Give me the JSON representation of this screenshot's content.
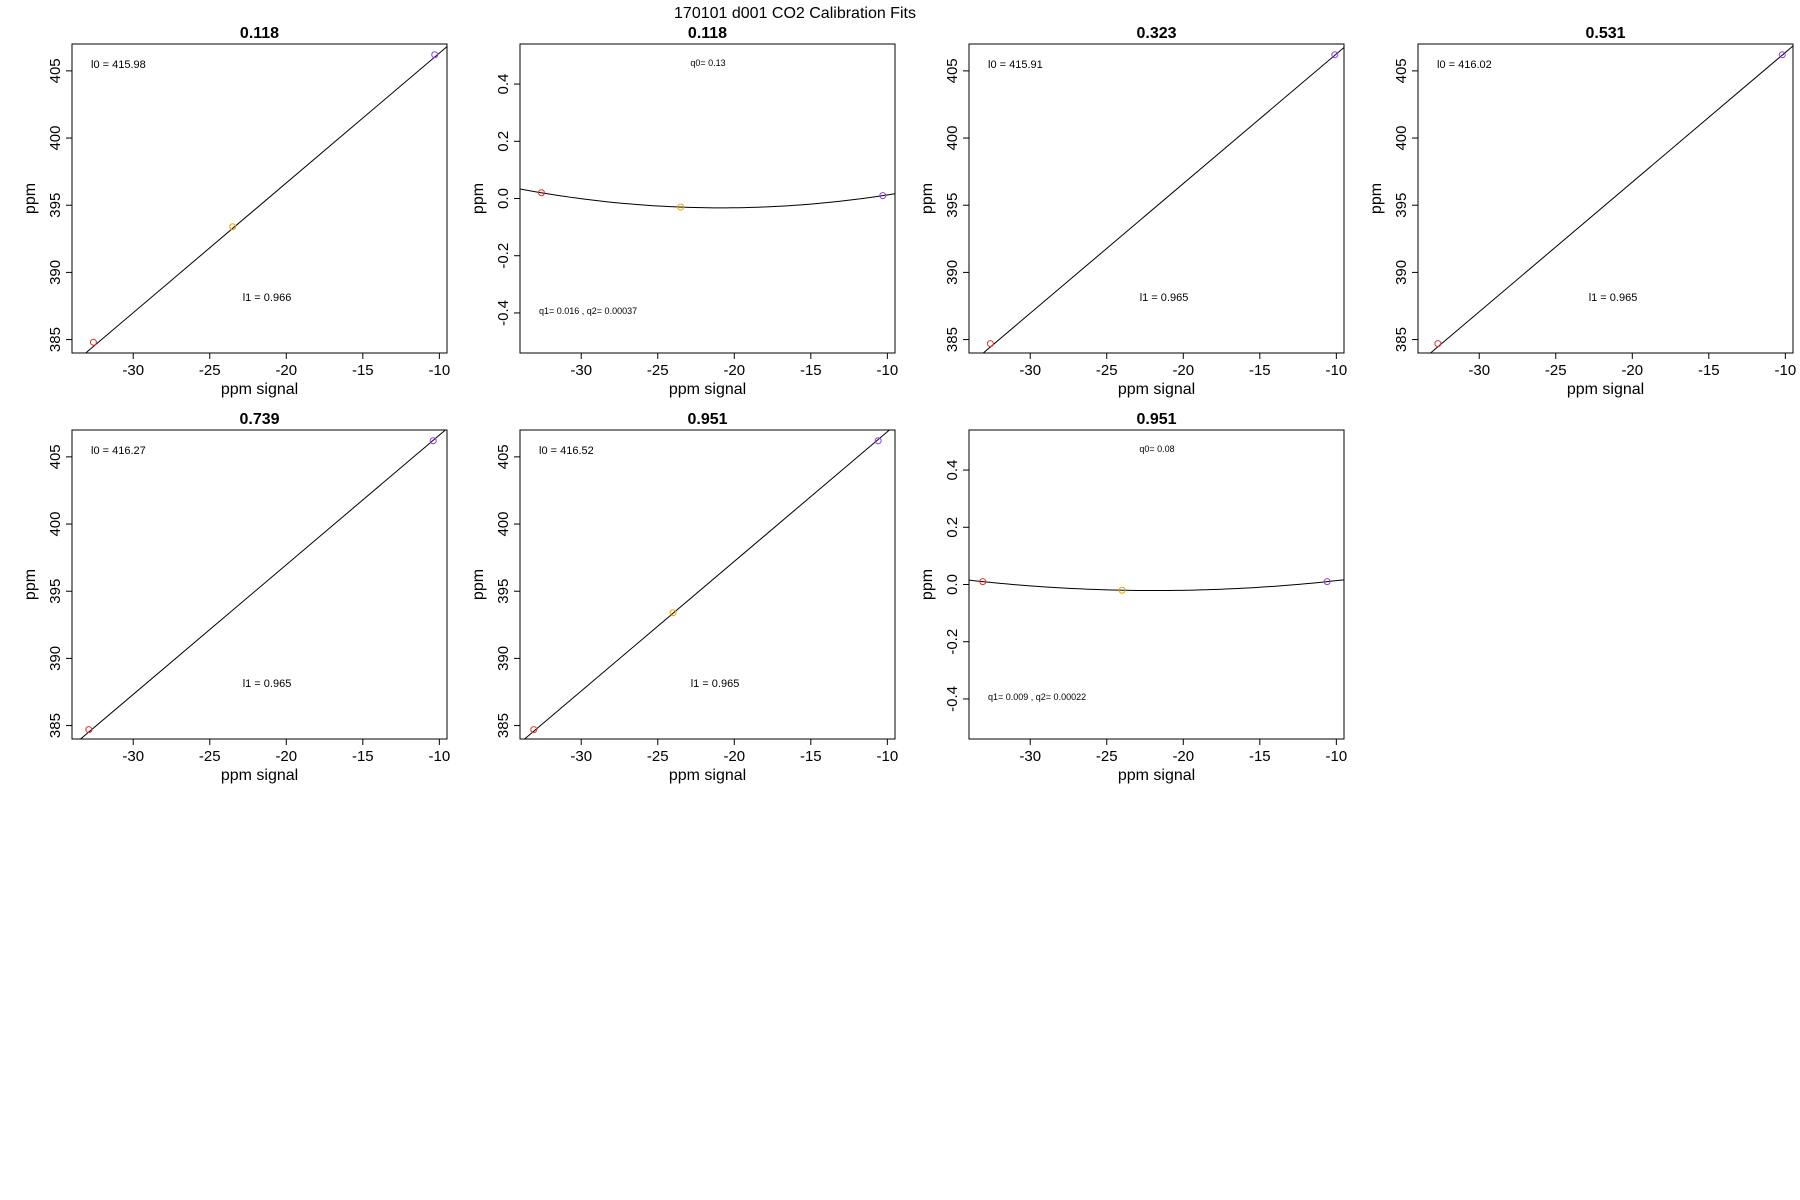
{
  "figure": {
    "title": "170101    d001    CO2 Calibration Fits"
  },
  "chart_data": [
    {
      "type": "scatter",
      "panel": "linear",
      "title": "0.118",
      "xlabel": "ppm signal",
      "ylabel": "ppm",
      "xlim": [
        -34,
        -9.5
      ],
      "ylim": [
        384,
        407
      ],
      "xticks": [
        -30,
        -25,
        -20,
        -15,
        -10
      ],
      "yticks": [
        385,
        390,
        395,
        400,
        405
      ],
      "points": [
        {
          "x": -32.6,
          "y": 384.8,
          "color": "#e03030"
        },
        {
          "x": -23.5,
          "y": 393.4,
          "color": "#f0a000"
        },
        {
          "x": -10.3,
          "y": 406.2,
          "color": "#9040e0"
        }
      ],
      "fit": {
        "intercept": 415.98,
        "slope": 0.966
      },
      "annotations": {
        "top": "l0 =  415.98",
        "bottom": "l1 =  0.966"
      }
    },
    {
      "type": "scatter",
      "panel": "residual",
      "title": "0.118",
      "xlabel": "ppm signal",
      "ylabel": "ppm",
      "xlim": [
        -34,
        -9.5
      ],
      "ylim": [
        -0.54,
        0.54
      ],
      "xticks": [
        -30,
        -25,
        -20,
        -15,
        -10
      ],
      "yticks": [
        -0.4,
        -0.2,
        0.0,
        0.2,
        0.4
      ],
      "ytick_labels": [
        "-0.4",
        "-0.2",
        "0.0",
        "0.2",
        "0.4"
      ],
      "points": [
        {
          "x": -32.6,
          "y": 0.02,
          "color": "#e03030"
        },
        {
          "x": -23.5,
          "y": -0.03,
          "color": "#f0a000"
        },
        {
          "x": -10.3,
          "y": 0.01,
          "color": "#9040e0"
        }
      ],
      "fit": {
        "q0": 0.13,
        "q1": 0.016,
        "q2": 0.00037
      },
      "annotations": {
        "top": "q0= 0.13",
        "bottom": "q1= 0.016 , q2= 0.00037"
      }
    },
    {
      "type": "scatter",
      "panel": "linear",
      "title": "0.323",
      "xlabel": "ppm signal",
      "ylabel": "ppm",
      "xlim": [
        -34,
        -9.5
      ],
      "ylim": [
        384,
        407
      ],
      "xticks": [
        -30,
        -25,
        -20,
        -15,
        -10
      ],
      "yticks": [
        385,
        390,
        395,
        400,
        405
      ],
      "points": [
        {
          "x": -32.6,
          "y": 384.7,
          "color": "#e03030"
        },
        {
          "x": -10.1,
          "y": 406.2,
          "color": "#9040e0"
        }
      ],
      "fit": {
        "intercept": 415.91,
        "slope": 0.965
      },
      "annotations": {
        "top": "l0 =  415.91",
        "bottom": "l1 =  0.965"
      }
    },
    {
      "type": "scatter",
      "panel": "linear",
      "title": "0.531",
      "xlabel": "ppm signal",
      "ylabel": "ppm",
      "xlim": [
        -34,
        -9.5
      ],
      "ylim": [
        384,
        407
      ],
      "xticks": [
        -30,
        -25,
        -20,
        -15,
        -10
      ],
      "yticks": [
        385,
        390,
        395,
        400,
        405
      ],
      "points": [
        {
          "x": -32.7,
          "y": 384.7,
          "color": "#e03030"
        },
        {
          "x": -10.2,
          "y": 406.2,
          "color": "#9040e0"
        }
      ],
      "fit": {
        "intercept": 416.02,
        "slope": 0.965
      },
      "annotations": {
        "top": "l0 =  416.02",
        "bottom": "l1 =  0.965"
      }
    },
    {
      "type": "scatter",
      "panel": "linear",
      "title": "0.739",
      "xlabel": "ppm signal",
      "ylabel": "ppm",
      "xlim": [
        -34,
        -9.5
      ],
      "ylim": [
        384,
        407
      ],
      "xticks": [
        -30,
        -25,
        -20,
        -15,
        -10
      ],
      "yticks": [
        385,
        390,
        395,
        400,
        405
      ],
      "points": [
        {
          "x": -32.9,
          "y": 384.7,
          "color": "#e03030"
        },
        {
          "x": -10.4,
          "y": 406.2,
          "color": "#9040e0"
        }
      ],
      "fit": {
        "intercept": 416.27,
        "slope": 0.965
      },
      "annotations": {
        "top": "l0 =  416.27",
        "bottom": "l1 =  0.965"
      }
    },
    {
      "type": "scatter",
      "panel": "linear",
      "title": "0.951",
      "xlabel": "ppm signal",
      "ylabel": "ppm",
      "xlim": [
        -34,
        -9.5
      ],
      "ylim": [
        384,
        407
      ],
      "xticks": [
        -30,
        -25,
        -20,
        -15,
        -10
      ],
      "yticks": [
        385,
        390,
        395,
        400,
        405
      ],
      "points": [
        {
          "x": -33.1,
          "y": 384.7,
          "color": "#e03030"
        },
        {
          "x": -24.0,
          "y": 393.4,
          "color": "#f0a000"
        },
        {
          "x": -10.6,
          "y": 406.2,
          "color": "#9040e0"
        }
      ],
      "fit": {
        "intercept": 416.52,
        "slope": 0.965
      },
      "annotations": {
        "top": "l0 =  416.52",
        "bottom": "l1 =  0.965"
      }
    },
    {
      "type": "scatter",
      "panel": "residual",
      "title": "0.951",
      "xlabel": "ppm signal",
      "ylabel": "ppm",
      "xlim": [
        -34,
        -9.5
      ],
      "ylim": [
        -0.54,
        0.54
      ],
      "xticks": [
        -30,
        -25,
        -20,
        -15,
        -10
      ],
      "yticks": [
        -0.4,
        -0.2,
        0.0,
        0.2,
        0.4
      ],
      "ytick_labels": [
        "-0.4",
        "-0.2",
        "0.0",
        "0.2",
        "0.4"
      ],
      "points": [
        {
          "x": -33.1,
          "y": 0.01,
          "color": "#e03030"
        },
        {
          "x": -24.0,
          "y": -0.02,
          "color": "#f0a000"
        },
        {
          "x": -10.6,
          "y": 0.01,
          "color": "#9040e0"
        }
      ],
      "fit": {
        "q0": 0.08,
        "q1": 0.009,
        "q2": 0.00022
      },
      "annotations": {
        "top": "q0= 0.08",
        "bottom": "q1= 0.009 , q2= 0.00022"
      }
    }
  ]
}
